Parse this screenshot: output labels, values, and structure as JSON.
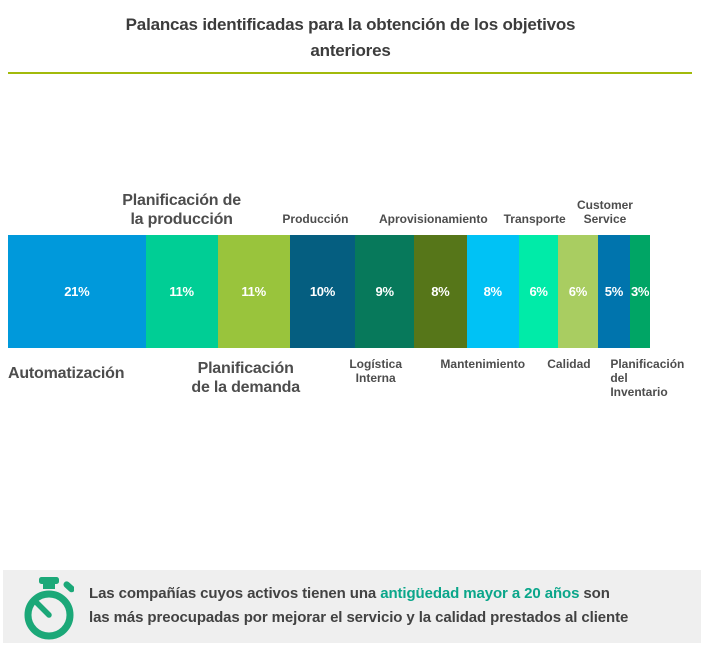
{
  "title": {
    "line1": "Palancas identificadas para la obtención de los objetivos",
    "line2": "anteriores",
    "color": "#3c3c3c",
    "rule_color": "#a2ba0b"
  },
  "chart_data": {
    "type": "bar",
    "subtype": "horizontal-stacked-single-bar",
    "unit": "%",
    "grid": false,
    "legend": "none",
    "title": "Palancas identificadas para la obtención de los objetivos anteriores",
    "categories": [
      "Automatización",
      "Planificación de la producción",
      "Planificación de la demanda",
      "Producción",
      "Logística Interna",
      "Aprovisionamiento",
      "Mantenimiento",
      "Transporte",
      "Calidad",
      "Customer Service",
      "Planificación del Inventario"
    ],
    "values": [
      21,
      11,
      11,
      10,
      9,
      8,
      8,
      6,
      6,
      5,
      3
    ],
    "segments": [
      {
        "label": "Automatización",
        "label_lines": [
          "Automatización"
        ],
        "value": 21,
        "display_value": "21%",
        "color": "#0099db",
        "label_side": "bottom",
        "label_size": "lg",
        "label_align": "left",
        "label_dx": 0,
        "label_gap": 16
      },
      {
        "label": "Planificación de la producción",
        "label_lines": [
          "Planificación de",
          "la producción"
        ],
        "value": 11,
        "display_value": "11%",
        "color": "#00ce95",
        "label_side": "top",
        "label_size": "lg",
        "label_align": "center",
        "label_dx": 0
      },
      {
        "label": "Planificación de la demanda",
        "label_lines": [
          "Planificación",
          "de la demanda"
        ],
        "value": 11,
        "display_value": "11%",
        "color": "#99c43c",
        "label_side": "bottom",
        "label_size": "lg",
        "label_align": "center",
        "label_dx": -8
      },
      {
        "label": "Producción",
        "label_lines": [
          "Producción"
        ],
        "value": 10,
        "display_value": "10%",
        "color": "#055e80",
        "label_side": "top",
        "label_size": "sm",
        "label_align": "center",
        "label_dx": -7
      },
      {
        "label": "Logística Interna",
        "label_lines": [
          "Logística",
          "Interna"
        ],
        "value": 9,
        "display_value": "9%",
        "color": "#07795b",
        "label_side": "bottom",
        "label_size": "sm",
        "label_align": "center",
        "label_dx": -9
      },
      {
        "label": "Aprovisionamiento",
        "label_lines": [
          "Aprovisionamiento"
        ],
        "value": 8,
        "display_value": "8%",
        "color": "#567619",
        "label_side": "top",
        "label_size": "sm",
        "label_align": "center",
        "label_dx": -7
      },
      {
        "label": "Mantenimiento",
        "label_lines": [
          "Mantenimiento"
        ],
        "value": 8,
        "display_value": "8%",
        "color": "#00c2f5",
        "label_side": "bottom",
        "label_size": "sm",
        "label_align": "center",
        "label_dx": -10
      },
      {
        "label": "Transporte",
        "label_lines": [
          "Transporte"
        ],
        "value": 6,
        "display_value": "6%",
        "color": "#00eba8",
        "label_side": "top",
        "label_size": "sm",
        "label_align": "center",
        "label_dx": -4
      },
      {
        "label": "Calidad",
        "label_lines": [
          "Calidad"
        ],
        "value": 6,
        "display_value": "6%",
        "color": "#a9cd61",
        "label_side": "bottom",
        "label_size": "sm",
        "label_align": "center",
        "label_dx": -9
      },
      {
        "label": "Customer Service",
        "label_lines": [
          "Customer",
          "Service"
        ],
        "value": 5,
        "display_value": "5%",
        "color": "#0074ad",
        "label_side": "top",
        "label_size": "sm",
        "label_align": "center",
        "label_dx": -9
      },
      {
        "label": "Planificación del Inventario",
        "label_lines": [
          "Planificación",
          "del",
          "Inventario"
        ],
        "value": 3,
        "display_value": "3%",
        "color": "#00a565",
        "label_side": "bottom",
        "label_size": "sm",
        "label_align": "left",
        "label_dx": -20
      }
    ]
  },
  "note": {
    "line1_pre": "Las compañías cuyos activos tienen una ",
    "line1_highlight": "antigüedad mayor a 20 años",
    "line1_post": " son",
    "line2": "las más preocupadas por mejorar el servicio y la calidad prestados al cliente",
    "highlight_color": "#0aa68a",
    "icon": "stopwatch-icon",
    "icon_color": "#1ba878",
    "bg_color": "#efefef",
    "text_color": "#424242"
  }
}
